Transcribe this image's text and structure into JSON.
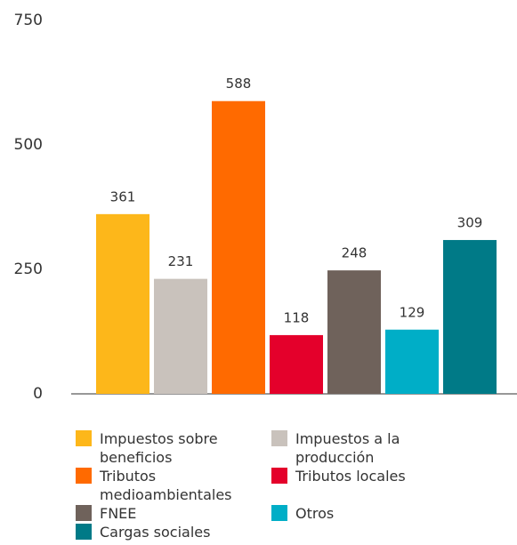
{
  "chart_data": {
    "type": "bar",
    "categories": [
      "Impuestos sobre beneficios",
      "Impuestos a la producción",
      "Tributos medioambientales",
      "Tributos locales",
      "FNEE",
      "Otros",
      "Cargas sociales"
    ],
    "values": [
      361,
      231,
      588,
      118,
      248,
      129,
      309
    ],
    "colors": [
      "#fdb71a",
      "#c9c2bc",
      "#ff6a00",
      "#e4002b",
      "#6f625b",
      "#00aec7",
      "#007a87"
    ],
    "ylim": [
      0,
      750
    ],
    "yticks": [
      0,
      250,
      500,
      750
    ],
    "grid": false,
    "legend": "bottom"
  }
}
